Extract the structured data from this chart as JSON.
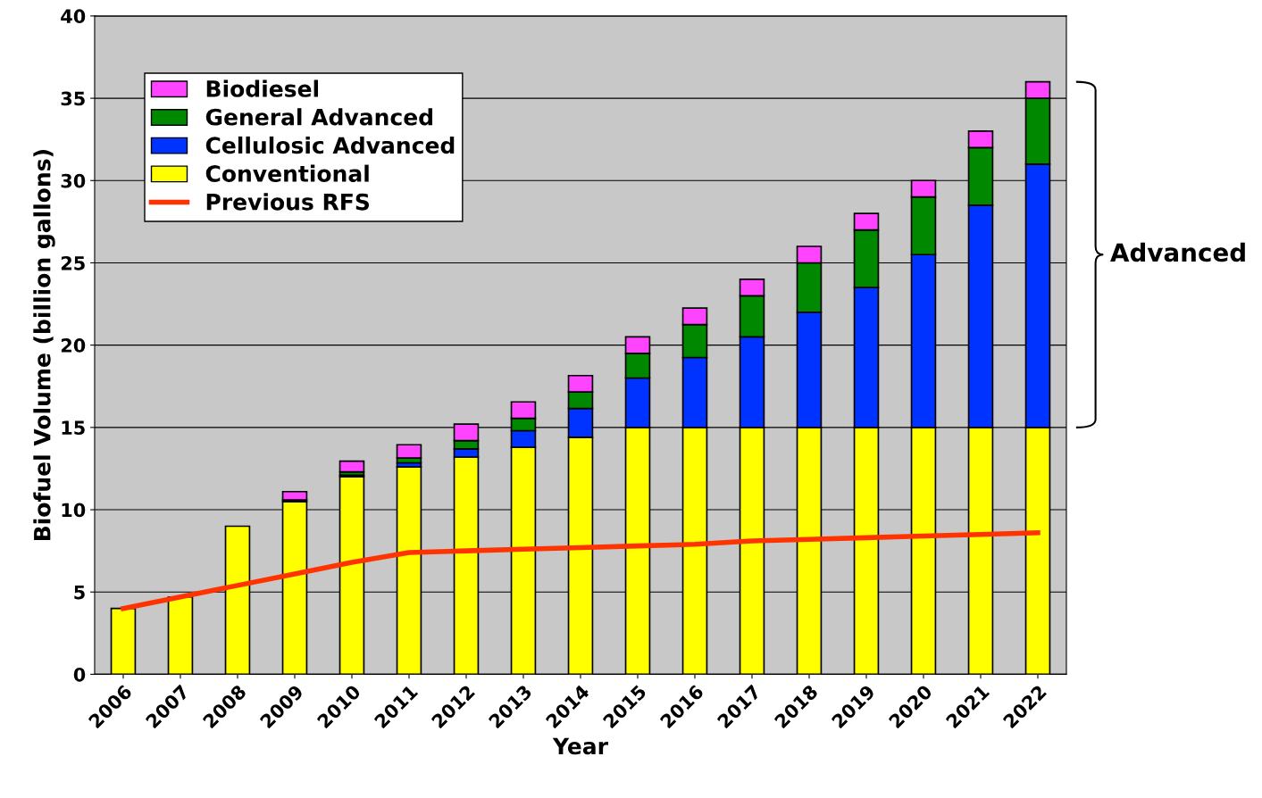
{
  "chart_data": {
    "type": "bar",
    "stacked": true,
    "xlabel": "Year",
    "ylabel": "Biofuel Volume (billion gallons)",
    "categories": [
      "2006",
      "2007",
      "2008",
      "2009",
      "2010",
      "2011",
      "2012",
      "2013",
      "2014",
      "2015",
      "2016",
      "2017",
      "2018",
      "2019",
      "2020",
      "2021",
      "2022"
    ],
    "series": [
      {
        "name": "Conventional",
        "color": "#ffff00",
        "values": [
          4.0,
          4.7,
          9.0,
          10.5,
          12.0,
          12.6,
          13.2,
          13.8,
          14.4,
          15,
          15,
          15,
          15,
          15,
          15,
          15,
          15
        ]
      },
      {
        "name": "Cellulosic Advanced",
        "color": "#0033ff",
        "values": [
          0,
          0,
          0,
          0,
          0.1,
          0.25,
          0.5,
          1.0,
          1.75,
          3.0,
          4.25,
          5.5,
          7.0,
          8.5,
          10.5,
          13.5,
          16.0
        ]
      },
      {
        "name": "General Advanced",
        "color": "#008800",
        "values": [
          0,
          0,
          0,
          0.1,
          0.2,
          0.3,
          0.5,
          0.75,
          1.0,
          1.5,
          2.0,
          2.5,
          3.0,
          3.5,
          3.5,
          3.5,
          4.0
        ]
      },
      {
        "name": "Biodiesel",
        "color": "#ff44ff",
        "values": [
          0,
          0,
          0,
          0.5,
          0.65,
          0.8,
          1.0,
          1.0,
          1.0,
          1.0,
          1.0,
          1.0,
          1.0,
          1.0,
          1.0,
          1.0,
          1.0
        ]
      },
      {
        "name": "Previous RFS",
        "type": "line",
        "color": "#ff3300",
        "values": [
          4.0,
          4.7,
          5.4,
          6.1,
          6.8,
          7.4,
          7.5,
          7.6,
          7.7,
          7.8,
          7.9,
          8.1,
          8.2,
          8.3,
          8.4,
          8.5,
          8.6
        ]
      }
    ],
    "ylim": [
      0,
      40
    ],
    "yticks": [
      0,
      5,
      10,
      15,
      20,
      25,
      30,
      35,
      40
    ],
    "grid": "y",
    "legend": "top left",
    "annotations": [
      "Advanced"
    ]
  }
}
